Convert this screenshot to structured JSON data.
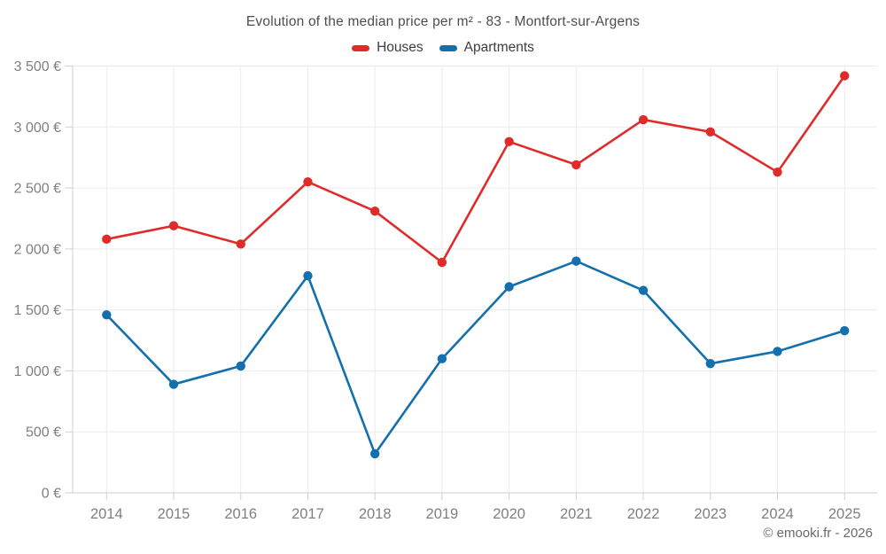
{
  "header": {
    "title": "Evolution of the median price per m² - 83 - Montfort-sur-Argens"
  },
  "legend": {
    "items": [
      {
        "label": "Houses",
        "color": "#e02b2b"
      },
      {
        "label": "Apartments",
        "color": "#1470ad"
      }
    ]
  },
  "footer": {
    "copyright": "© emooki.fr - 2026"
  },
  "chart_data": {
    "type": "line",
    "title": "Evolution of the median price per m² - 83 - Montfort-sur-Argens",
    "categories": [
      "2014",
      "2015",
      "2016",
      "2017",
      "2018",
      "2019",
      "2020",
      "2021",
      "2022",
      "2023",
      "2024",
      "2025"
    ],
    "series": [
      {
        "name": "Houses",
        "color": "#e02b2b",
        "values": [
          2080,
          2190,
          2040,
          2550,
          2310,
          1890,
          2880,
          2690,
          3060,
          2960,
          2630,
          3420
        ]
      },
      {
        "name": "Apartments",
        "color": "#1470ad",
        "values": [
          1460,
          890,
          1040,
          1780,
          320,
          1100,
          1690,
          1900,
          1660,
          1060,
          1160,
          1330
        ]
      }
    ],
    "xlabel": "",
    "ylabel": "",
    "ylim": [
      0,
      3500
    ],
    "ytick_step": 500,
    "ytick_suffix": " €",
    "grid": true,
    "legend_position": "top",
    "grid_color": "#ebebeb",
    "axis_color": "#cfcfcf",
    "tick_label_color": "#7f7f7f"
  }
}
